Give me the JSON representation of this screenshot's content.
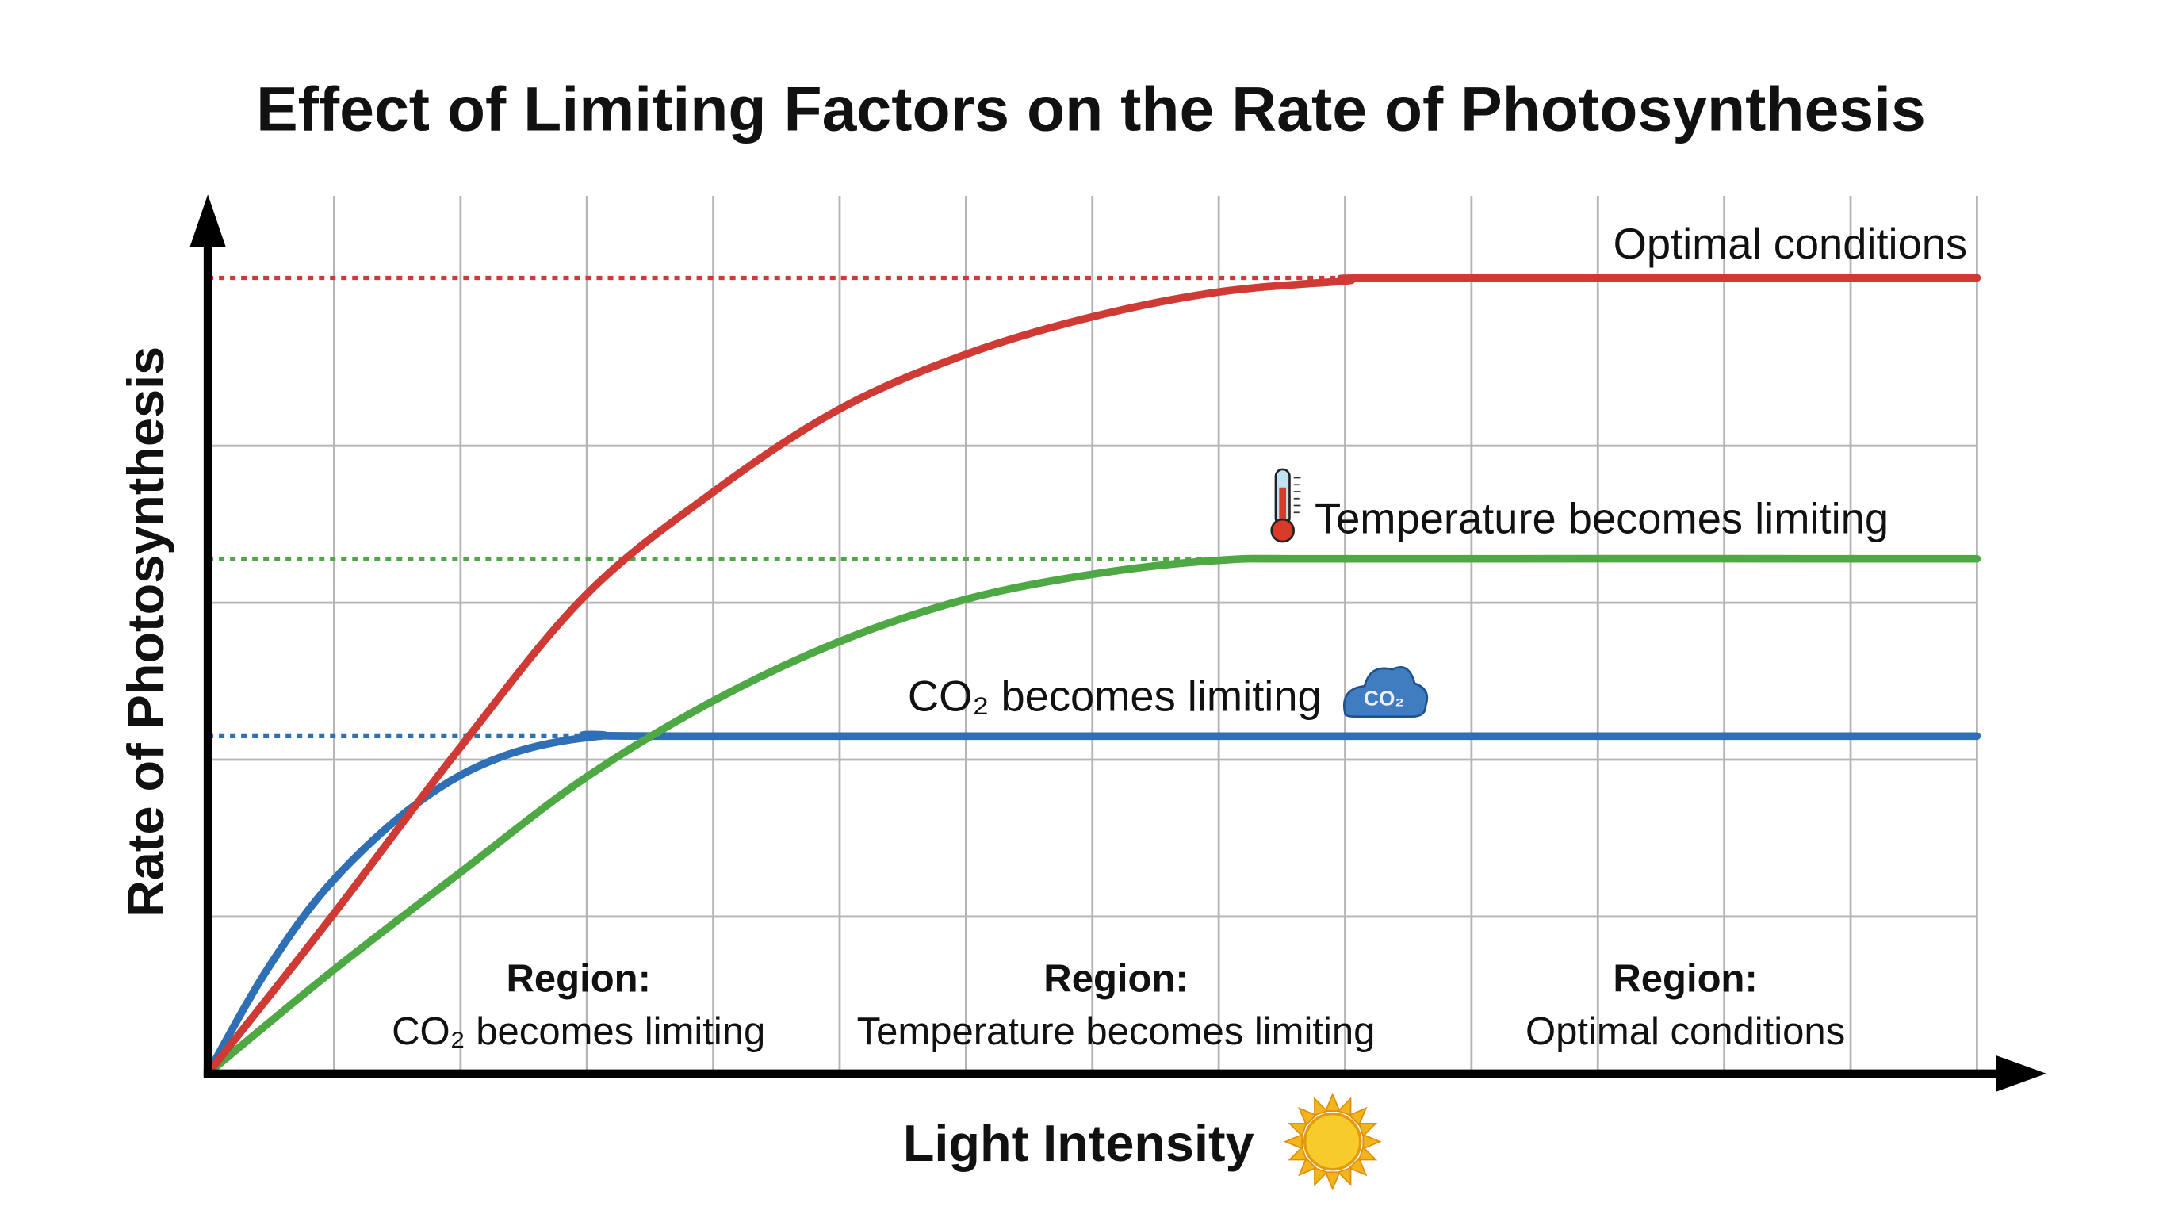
{
  "chart_data": {
    "type": "line",
    "title": "Effect of Limiting Factors on the Rate of Photosynthesis",
    "xlabel": "Light Intensity",
    "ylabel": "Rate of Photosynthesis",
    "xlim": [
      0,
      14
    ],
    "ylim": [
      0,
      5.6
    ],
    "grid": true,
    "x_gridlines": [
      1,
      2,
      3,
      4,
      5,
      6,
      7,
      8,
      9,
      10,
      11,
      12,
      13,
      14
    ],
    "y_gridlines": [
      1,
      2,
      3,
      4
    ],
    "series": [
      {
        "name": "Optimal conditions",
        "color": "#d03a35",
        "plateau": 5.07,
        "points": [
          [
            0,
            0
          ],
          [
            0.98,
            1.0
          ],
          [
            1.98,
            2.06
          ],
          [
            2.98,
            3.04
          ],
          [
            3.99,
            3.7
          ],
          [
            4.99,
            4.23
          ],
          [
            5.99,
            4.58
          ],
          [
            6.99,
            4.82
          ],
          [
            8,
            4.98
          ],
          [
            9,
            5.05
          ],
          [
            9.4,
            5.07
          ],
          [
            14,
            5.07
          ]
        ]
      },
      {
        "name": "Temperature becomes limiting",
        "color": "#4ea844",
        "plateau": 3.28,
        "points": [
          [
            0,
            0
          ],
          [
            0.98,
            0.65
          ],
          [
            1.98,
            1.27
          ],
          [
            2.98,
            1.88
          ],
          [
            3.99,
            2.37
          ],
          [
            4.99,
            2.75
          ],
          [
            5.99,
            3.02
          ],
          [
            6.99,
            3.18
          ],
          [
            8,
            3.27
          ],
          [
            9,
            3.28
          ],
          [
            14,
            3.28
          ]
        ]
      },
      {
        "name": "CO₂ becomes limiting",
        "color": "#2f6fb5",
        "plateau": 2.15,
        "points": [
          [
            0,
            0
          ],
          [
            0.46,
            0.65
          ],
          [
            0.98,
            1.22
          ],
          [
            1.67,
            1.73
          ],
          [
            2.33,
            2.02
          ],
          [
            3.1,
            2.15
          ],
          [
            4,
            2.15
          ],
          [
            14,
            2.15
          ]
        ]
      }
    ],
    "annotations": {
      "optimal": "Optimal conditions",
      "temperature": "Temperature becomes limiting",
      "co2": "CO₂ becomes limiting"
    },
    "regions": [
      {
        "heading": "Region:",
        "text": "CO₂ becomes limiting"
      },
      {
        "heading": "Region:",
        "text": "Temperature becomes limiting"
      },
      {
        "heading": "Region:",
        "text": "Optimal conditions"
      }
    ],
    "icons": {
      "temperature": "thermometer-icon",
      "co2": "co2-cloud-icon",
      "light": "sun-icon"
    },
    "icon_text": {
      "cloud": "CO₂"
    }
  }
}
